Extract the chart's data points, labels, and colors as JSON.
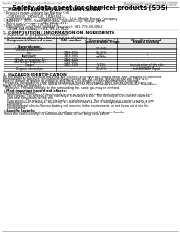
{
  "background_color": "#ffffff",
  "header_left": "Product Name: Lithium Ion Battery Cell",
  "header_right_line1": "Reference Number: SDS-BN-0001B",
  "header_right_line2": "Established / Revision: Dec.1.2016",
  "title": "Safety data sheet for chemical products (SDS)",
  "section1_title": "1. PRODUCT AND COMPANY IDENTIFICATION",
  "section1_lines": [
    "• Product name: Lithium Ion Battery Cell",
    "• Product code: Cylindrical-type cell",
    "    (18166500, 18166500, 18166504)",
    "• Company name:      Sanyo Electric Co., Ltd., Mobile Energy Company",
    "• Address:    2001, Kamitakamatsu, Sumoto-City, Hyogo, Japan",
    "• Telephone number:   +81-799-26-4111",
    "• Fax number:   +81-799-26-4129",
    "• Emergency telephone number (daytime): +81-799-26-3062",
    "    (Night and holiday): +81-799-26-3120"
  ],
  "section2_title": "2. COMPOSITION / INFORMATION ON INGREDIENTS",
  "section2_sub1": "• Substance or preparation: Preparation",
  "section2_sub2": "• Information about the chemical nature of product",
  "table_header1": "Component/chemical name",
  "table_header2": "Several name",
  "table_col2": "CAS number",
  "table_col3a": "Concentration /",
  "table_col3b": "Concentration range",
  "table_col4a": "Classification and",
  "table_col4b": "hazard labeling",
  "table_rows": [
    [
      "Lithium cobalt oxide",
      "-",
      "30-60%",
      ""
    ],
    [
      "(LiMnxCoxNi(x)O2)",
      "",
      "",
      ""
    ],
    [
      "Iron",
      "7439-89-6",
      "15-25%",
      "-"
    ],
    [
      "Aluminium",
      "7429-90-5",
      "2-5%",
      "-"
    ],
    [
      "Graphite",
      "",
      "10-25%",
      ""
    ],
    [
      "(Flake or graphite-1)",
      "7782-42-5",
      "",
      ""
    ],
    [
      "(Air-blown graphite-2)",
      "7782-44-7",
      "",
      ""
    ],
    [
      "Copper",
      "7440-50-8",
      "5-15%",
      "Sensitization of the skin"
    ],
    [
      "",
      "",
      "",
      "group No.2"
    ],
    [
      "Organic electrolyte",
      "-",
      "10-20%",
      "Inflammable liquid"
    ]
  ],
  "section3_title": "3. HAZARDS IDENTIFICATION",
  "section3_lines": [
    "For this battery cell, chemical materials are stored in a hermetically sealed metal case, designed to withstand",
    "temperatures or pressures encountered during normal use. As a result, during normal use, there is no",
    "physical danger of ignition or explosion and there is no danger of hazardous materials leakage.",
    "   However, if exposed to a fire added mechanical shocks, decompose, when electro steam of many use,",
    "the gas release volume can be operated. The battery cell case will be breached at fire-extreme, hazardous",
    "materials may be released.",
    "   Moreover, if heated strongly by the surrounding fire, some gas may be emitted."
  ],
  "section3_sub1_title": "• Most important hazard and effects:",
  "section3_sub1_lines": [
    "Human health effects:",
    "   Inhalation: The release of the electrolyte has an anesthesia action and stimulates is respiratory tract.",
    "   Skin contact: The release of the electrolyte stimulates a skin. The electrolyte skin contact causes a",
    "   sore and stimulation on the skin.",
    "   Eye contact: The release of the electrolyte stimulates eyes. The electrolyte eye contact causes a sore",
    "   and stimulation on the eye. Especially, a substance that causes a strong inflammation of the eye is",
    "   contained.",
    "   Environmental effects: Since a battery cell remains in the environment, do not throw out it into the",
    "   environment."
  ],
  "section3_sub2_title": "• Specific hazards:",
  "section3_sub2_lines": [
    "If the electrolyte contacts with water, it will generate detrimental hydrogen fluoride.",
    "Since the said electrolyte is inflammable liquid, do not bring close to fire."
  ],
  "footer_line": true
}
